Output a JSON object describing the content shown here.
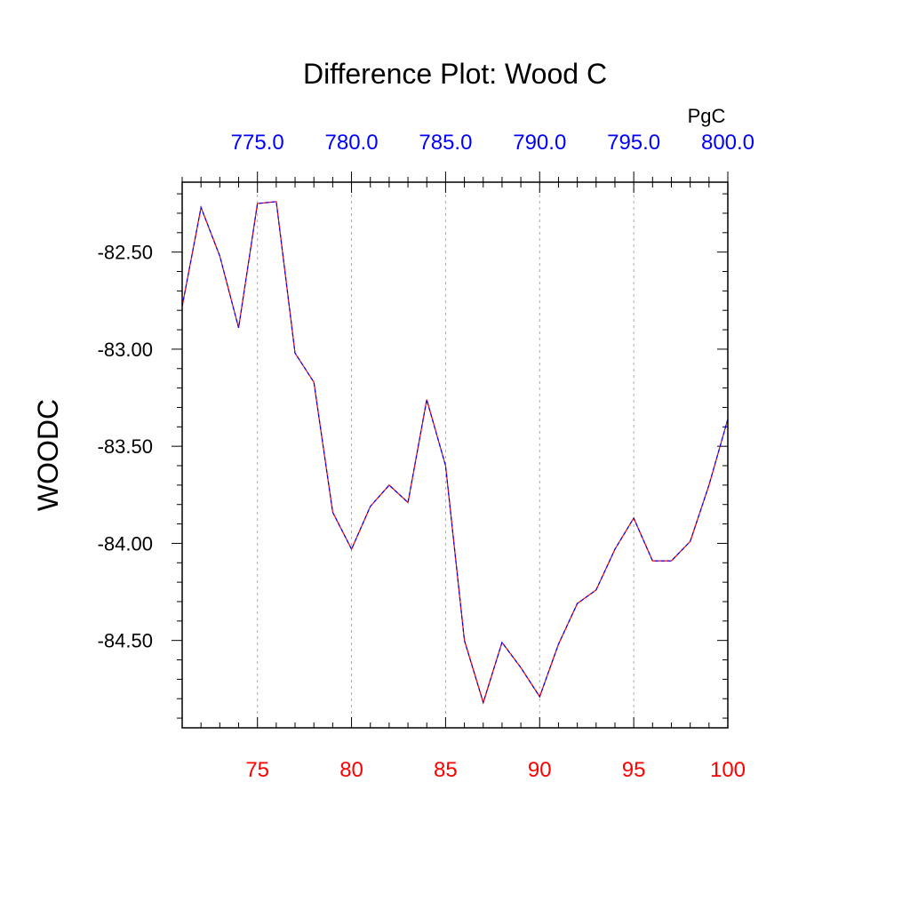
{
  "chart_data": {
    "type": "line",
    "title": "Difference Plot: Wood C",
    "ylabel": "WOODC",
    "xlabel": "",
    "top_axis_unit": "PgC",
    "xlim": [
      71,
      100
    ],
    "ylim": [
      -84.95,
      -82.14
    ],
    "grid": "vertical dashed at major x ticks",
    "colors": {
      "bottom_axis_labels": "#ff0000",
      "top_axis_labels": "#0000ff",
      "series_line_a": "#ff0000",
      "series_line_b": "#0000ff",
      "grid": "#aaaaaa",
      "frame": "#000000"
    },
    "x_ticks": [
      75,
      80,
      85,
      90,
      95,
      100
    ],
    "x_tick_labels": [
      "75",
      "80",
      "85",
      "90",
      "95",
      "100"
    ],
    "top_ticks": [
      775.0,
      780.0,
      785.0,
      790.0,
      795.0,
      800.0
    ],
    "top_tick_labels": [
      "775.0",
      "780.0",
      "785.0",
      "790.0",
      "795.0",
      "800.0"
    ],
    "y_ticks": [
      -82.5,
      -83.0,
      -83.5,
      -84.0,
      -84.5
    ],
    "y_tick_labels": [
      "-82.50",
      "-83.00",
      "-83.50",
      "-84.00",
      "-84.50"
    ],
    "x": [
      71,
      72,
      73,
      74,
      75,
      76,
      77,
      78,
      79,
      80,
      81,
      82,
      83,
      84,
      85,
      86,
      87,
      88,
      89,
      90,
      91,
      92,
      93,
      94,
      95,
      96,
      97,
      98,
      99,
      100
    ],
    "series": [
      {
        "values": [
          -82.78,
          -82.27,
          -82.52,
          -82.89,
          -82.25,
          -82.24,
          -83.02,
          -83.17,
          -83.84,
          -84.03,
          -83.81,
          -83.7,
          -83.79,
          -83.26,
          -83.6,
          -84.5,
          -84.82,
          -84.51,
          -84.64,
          -84.79,
          -84.52,
          -84.31,
          -84.24,
          -84.03,
          -83.87,
          -84.09,
          -84.09,
          -83.99,
          -83.7,
          -83.36
        ]
      }
    ]
  }
}
